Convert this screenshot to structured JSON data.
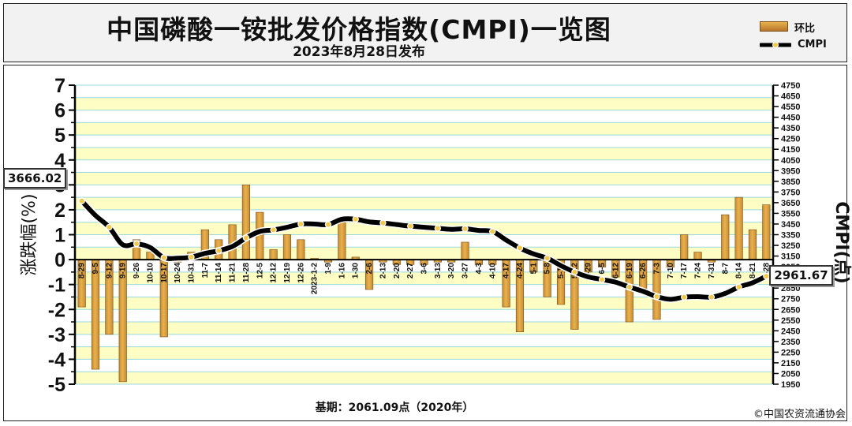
{
  "header": {
    "title": "中国磷酸一铵批发价格指数(CMPI)一览图",
    "subtitle": "2023年8月28日发布"
  },
  "legend": {
    "bar_label": "环比",
    "line_label": "CMPI"
  },
  "colors": {
    "bar": "#c88a33",
    "bar_light": "#e8b24e",
    "band_yellow": "#fdfdc4",
    "gridline": "#9ad9e0",
    "line": "#000000",
    "marker": "#f2c94c"
  },
  "footer": {
    "base_note": "基期：2061.09点（2020年）",
    "copyright": "©中国农资流通协会"
  },
  "chart_data": {
    "type": "bar",
    "ylabel": "涨跌幅(%)",
    "y2label": "CMPI(点)",
    "ylim": [
      -5,
      7
    ],
    "y_ticks": [
      "-5",
      "-4",
      "-3",
      "-2",
      "-1",
      "0",
      "1",
      "2",
      "3",
      "4",
      "5",
      "6",
      "7"
    ],
    "y2lim": [
      1950,
      4750
    ],
    "y2_ticks": [
      "1950",
      "2050",
      "2150",
      "2250",
      "2350",
      "2450",
      "2550",
      "2650",
      "2750",
      "2850",
      "2950",
      "3050",
      "3150",
      "3250",
      "3350",
      "3450",
      "3550",
      "3650",
      "3750",
      "3850",
      "3950",
      "4050",
      "4150",
      "4250",
      "4350",
      "4450",
      "4550",
      "4650",
      "4750"
    ],
    "grid": true,
    "legend_position": "top-right",
    "categories": [
      "8-29",
      "9-5",
      "9-12",
      "9-19",
      "9-26",
      "10-10",
      "10-17",
      "10-24",
      "10-31",
      "11-7",
      "11-14",
      "11-21",
      "11-28",
      "12-5",
      "12-12",
      "12-19",
      "12-26",
      "2023-1-2",
      "1-9",
      "1-16",
      "1-30",
      "2-6",
      "2-13",
      "2-20",
      "2-27",
      "3-6",
      "3-13",
      "3-20",
      "3-27",
      "4-3",
      "4-10",
      "4-17",
      "4-24",
      "5-1",
      "5-8",
      "5-15",
      "5-22",
      "5-29",
      "6-5",
      "6-12",
      "6-19",
      "6-26",
      "7-3",
      "7-10",
      "7-17",
      "7-24",
      "7-31",
      "8-7",
      "8-14",
      "8-21",
      "8-28"
    ],
    "series": [
      {
        "name": "环比",
        "type": "bar",
        "axis": "left",
        "values": [
          -1.9,
          -4.4,
          -3.0,
          -4.9,
          0.8,
          0.3,
          -3.1,
          -0.1,
          0.3,
          1.2,
          0.8,
          1.4,
          3.0,
          1.9,
          0.4,
          1.0,
          0.8,
          0.05,
          -0.1,
          1.5,
          0.1,
          -1.2,
          -0.1,
          -0.2,
          -0.2,
          -0.2,
          -0.1,
          -0.1,
          0.7,
          -0.2,
          -0.2,
          -1.9,
          -2.9,
          -0.5,
          -1.5,
          -1.8,
          -2.8,
          -0.5,
          -0.3,
          -0.7,
          -2.5,
          -1.2,
          -2.4,
          -0.3,
          1.0,
          0.3,
          -0.1,
          1.8,
          2.5,
          1.2,
          2.2
        ]
      },
      {
        "name": "CMPI",
        "type": "line",
        "axis": "right",
        "values": [
          3666.02,
          3530,
          3420,
          3255,
          3265,
          3230,
          3135,
          3130,
          3140,
          3175,
          3200,
          3240,
          3320,
          3380,
          3395,
          3420,
          3450,
          3450,
          3445,
          3495,
          3495,
          3470,
          3460,
          3445,
          3430,
          3420,
          3410,
          3400,
          3405,
          3390,
          3380,
          3300,
          3225,
          3170,
          3130,
          3060,
          3000,
          2955,
          2930,
          2905,
          2860,
          2820,
          2770,
          2745,
          2765,
          2770,
          2765,
          2800,
          2860,
          2900,
          2961.67
        ]
      }
    ],
    "annotations": [
      {
        "label": "3666.02",
        "target": "first CMPI point"
      },
      {
        "label": "2961.67",
        "target": "last CMPI point"
      }
    ]
  }
}
